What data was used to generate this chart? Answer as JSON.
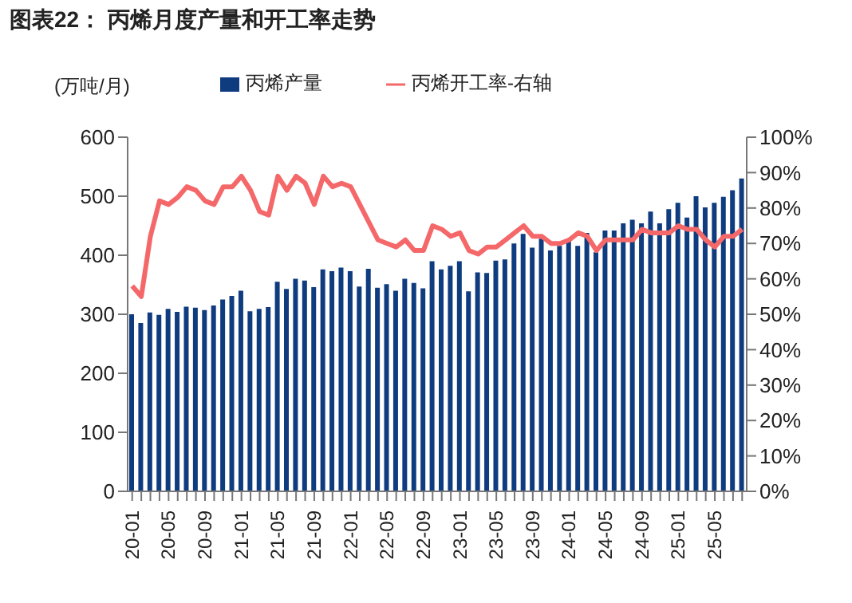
{
  "chart_data": {
    "type": "bar",
    "title": "图表22： 丙烯月度产量和开工率走势",
    "ylabel": "(万吨/月)",
    "categories": [
      "20-01",
      null,
      null,
      null,
      "20-05",
      null,
      null,
      null,
      "20-09",
      null,
      null,
      null,
      "21-01",
      null,
      null,
      null,
      "21-05",
      null,
      null,
      null,
      "21-09",
      null,
      null,
      null,
      "22-01",
      null,
      null,
      null,
      "22-05",
      null,
      null,
      null,
      "22-09",
      null,
      null,
      null,
      "23-01",
      null,
      null,
      null,
      "23-05",
      null,
      null,
      null,
      "23-09",
      null,
      null,
      null,
      "24-01",
      null,
      null,
      null,
      "24-05",
      null,
      null,
      null,
      "24-09",
      null,
      null,
      null,
      "25-01",
      null,
      null,
      null,
      "25-05",
      null,
      null,
      null
    ],
    "series": [
      {
        "name": "丙烯产量",
        "color": "#0f3b7f",
        "values": [
          300,
          285,
          303,
          299,
          309,
          304,
          313,
          311,
          307,
          315,
          325,
          331,
          340,
          305,
          309,
          312,
          355,
          343,
          360,
          357,
          346,
          376,
          373,
          379,
          373,
          347,
          377,
          345,
          351,
          340,
          360,
          353,
          344,
          390,
          376,
          382,
          390,
          339,
          371,
          370,
          391,
          393,
          420,
          436,
          413,
          428,
          408,
          416,
          426,
          416,
          438,
          405,
          442,
          442,
          454,
          460,
          454,
          474,
          454,
          478,
          489,
          464,
          500,
          481,
          489,
          499,
          510,
          530
        ]
      },
      {
        "name": "丙烯开工率-右轴",
        "type": "line",
        "axis": "y2",
        "color": "#f4686a",
        "values": [
          58,
          55,
          72,
          82,
          81,
          83,
          86,
          85,
          82,
          81,
          86,
          86,
          89,
          85,
          79,
          78,
          89,
          85,
          89,
          87,
          81,
          89,
          86,
          87,
          86,
          81,
          76,
          71,
          70,
          69,
          71,
          68,
          68,
          75,
          74,
          72,
          73,
          68,
          67,
          69,
          69,
          71,
          73,
          75,
          72,
          72,
          70,
          70,
          71,
          73,
          72,
          68,
          71,
          71,
          71,
          71,
          74,
          73,
          73,
          73,
          75,
          74,
          74,
          71,
          69,
          72,
          72,
          74
        ]
      }
    ],
    "ylim": [
      0,
      600
    ],
    "yticks": [
      0,
      100,
      200,
      300,
      400,
      500,
      600
    ],
    "y2lim": [
      0,
      100
    ],
    "y2ticks": [
      {
        "value": 0,
        "label": "0%"
      },
      {
        "value": 10,
        "label": "10%"
      },
      {
        "value": 20,
        "label": "20%"
      },
      {
        "value": 30,
        "label": "30%"
      },
      {
        "value": 40,
        "label": "40%"
      },
      {
        "value": 50,
        "label": "50%"
      },
      {
        "value": 60,
        "label": "60%"
      },
      {
        "value": 70,
        "label": "70%"
      },
      {
        "value": 80,
        "label": "80%"
      },
      {
        "value": 90,
        "label": "90%"
      },
      {
        "value": 100,
        "label": "100%"
      }
    ],
    "legend": "top",
    "marker": "none"
  }
}
